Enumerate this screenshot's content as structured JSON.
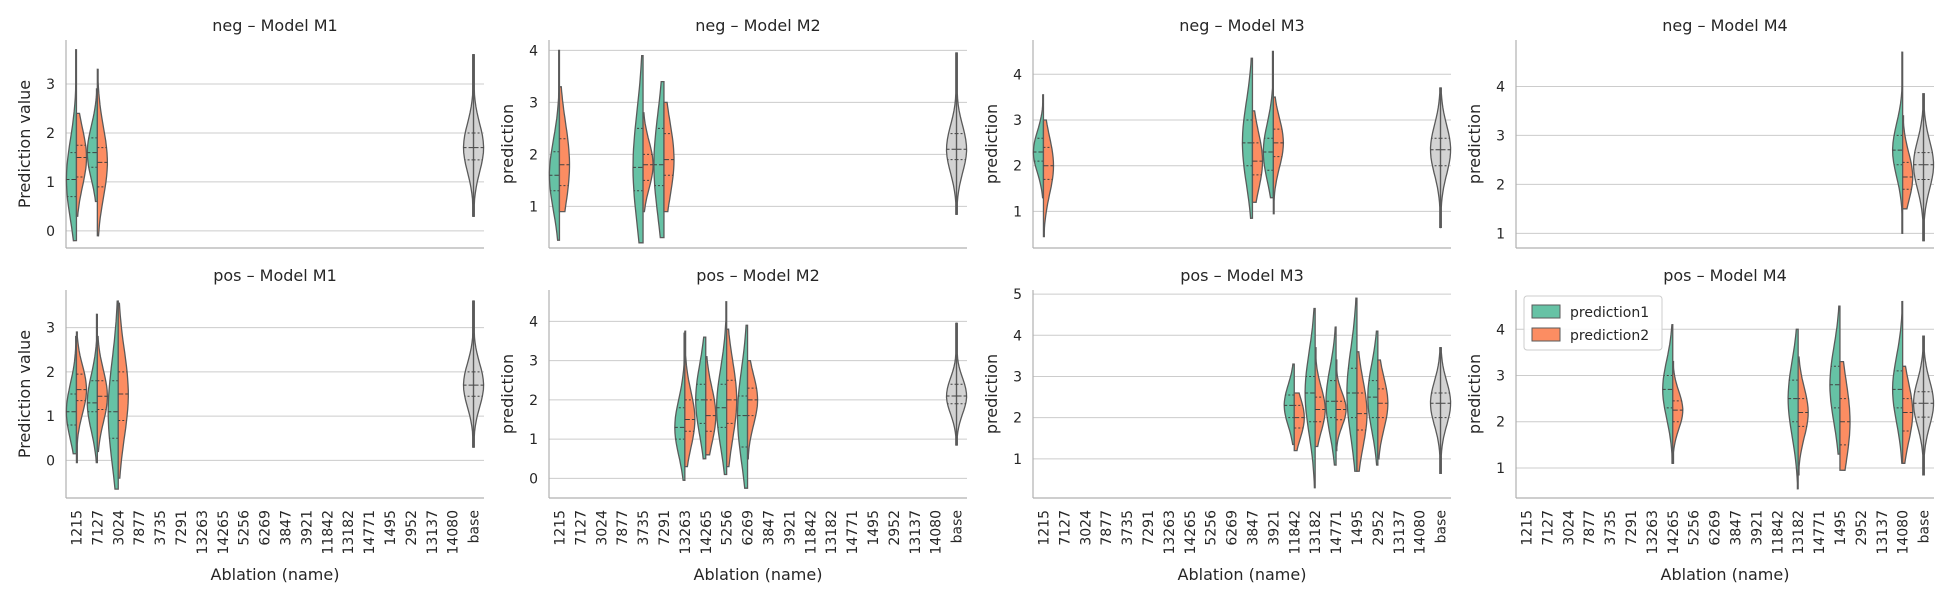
{
  "figure": {
    "x_axis_label": "Ablation (name)",
    "x_tick_labels": [
      "1215",
      "7127",
      "3024",
      "7877",
      "3735",
      "7291",
      "13263",
      "14265",
      "5256",
      "6269",
      "3847",
      "3921",
      "11842",
      "13182",
      "14771",
      "1495",
      "2952",
      "13137",
      "14080",
      "base"
    ],
    "legend": {
      "items": [
        {
          "label": "prediction1"
        },
        {
          "label": "prediction2"
        }
      ]
    }
  },
  "colors": {
    "prediction1": "#66c2a5",
    "prediction2": "#fc8d62",
    "base": "#d3d3d3",
    "outline": "#5a5a5a",
    "grid": "#cccccc",
    "axis": "#b0b0b0"
  },
  "chart_data": [
    {
      "type": "violin",
      "title": "neg – Model M1",
      "ylabel": "Prediction value",
      "ylim": [
        -0.35,
        3.9
      ],
      "yticks": [
        0,
        1,
        2,
        3
      ],
      "violins": [
        {
          "category": "1215",
          "p1": {
            "min": -0.2,
            "max": 3.7,
            "q1": 0.7,
            "median": 1.05,
            "q3": 1.6
          },
          "p2": {
            "min": 0.3,
            "max": 2.4,
            "q1": 1.1,
            "median": 1.5,
            "q3": 1.75
          }
        },
        {
          "category": "7127",
          "p1": {
            "min": 0.6,
            "max": 2.9,
            "q1": 1.3,
            "median": 1.6,
            "q3": 1.9
          },
          "p2": {
            "min": -0.1,
            "max": 3.3,
            "q1": 0.9,
            "median": 1.4,
            "q3": 1.7
          }
        },
        {
          "category": "base",
          "base": {
            "min": 0.3,
            "max": 3.6,
            "q1": 1.45,
            "median": 1.7,
            "q3": 2.0
          }
        }
      ]
    },
    {
      "type": "violin",
      "title": "neg – Model M2",
      "ylabel": "prediction",
      "ylim": [
        0.2,
        4.2
      ],
      "yticks": [
        1,
        2,
        3,
        4
      ],
      "violins": [
        {
          "category": "1215",
          "p1": {
            "min": 0.35,
            "max": 4.0,
            "q1": 1.3,
            "median": 1.6,
            "q3": 2.05
          },
          "p2": {
            "min": 0.9,
            "max": 3.3,
            "q1": 1.4,
            "median": 1.8,
            "q3": 2.3
          }
        },
        {
          "category": "3735",
          "p1": {
            "min": 0.3,
            "max": 3.9,
            "q1": 1.3,
            "median": 1.75,
            "q3": 2.5
          },
          "p2": {
            "min": 0.9,
            "max": 2.8,
            "q1": 1.5,
            "median": 1.8,
            "q3": 2.0
          }
        },
        {
          "category": "7291",
          "p1": {
            "min": 0.4,
            "max": 3.4,
            "q1": 1.4,
            "median": 1.8,
            "q3": 2.5
          },
          "p2": {
            "min": 0.9,
            "max": 3.0,
            "q1": 1.6,
            "median": 1.9,
            "q3": 2.4
          }
        },
        {
          "category": "base",
          "base": {
            "min": 0.85,
            "max": 3.95,
            "q1": 1.9,
            "median": 2.1,
            "q3": 2.4
          }
        }
      ]
    },
    {
      "type": "violin",
      "title": "neg – Model M3",
      "ylabel": "prediction",
      "ylim": [
        0.2,
        4.75
      ],
      "yticks": [
        1,
        2,
        3,
        4
      ],
      "violins": [
        {
          "category": "1215",
          "p1": {
            "min": 1.3,
            "max": 3.55,
            "q1": 2.1,
            "median": 2.3,
            "q3": 2.6
          },
          "p2": {
            "min": 0.45,
            "max": 3.0,
            "q1": 1.7,
            "median": 2.0,
            "q3": 2.4
          }
        },
        {
          "category": "3847",
          "p1": {
            "min": 0.85,
            "max": 4.35,
            "q1": 2.0,
            "median": 2.5,
            "q3": 3.0
          },
          "p2": {
            "min": 1.2,
            "max": 3.2,
            "q1": 1.8,
            "median": 2.1,
            "q3": 2.5
          }
        },
        {
          "category": "3921",
          "p1": {
            "min": 1.3,
            "max": 4.5,
            "q1": 1.9,
            "median": 2.3,
            "q3": 2.6
          },
          "p2": {
            "min": 0.95,
            "max": 3.5,
            "q1": 2.2,
            "median": 2.5,
            "q3": 2.8
          }
        },
        {
          "category": "base",
          "base": {
            "min": 0.65,
            "max": 3.7,
            "q1": 2.0,
            "median": 2.35,
            "q3": 2.6
          }
        }
      ]
    },
    {
      "type": "violin",
      "title": "neg – Model M4",
      "ylabel": "prediction",
      "ylim": [
        0.7,
        4.95
      ],
      "yticks": [
        1,
        2,
        3,
        4
      ],
      "violins": [
        {
          "category": "14080",
          "p1": {
            "min": 1.0,
            "max": 4.7,
            "q1": 2.4,
            "median": 2.7,
            "q3": 3.0
          },
          "p2": {
            "min": 1.5,
            "max": 3.4,
            "q1": 1.9,
            "median": 2.15,
            "q3": 2.45
          }
        },
        {
          "category": "base",
          "base": {
            "min": 0.85,
            "max": 3.85,
            "q1": 2.1,
            "median": 2.4,
            "q3": 2.65
          }
        }
      ]
    },
    {
      "type": "violin",
      "title": "pos – Model M1",
      "ylabel": "Prediction value",
      "ylim": [
        -0.85,
        3.85
      ],
      "yticks": [
        0,
        1,
        2,
        3
      ],
      "violins": [
        {
          "category": "1215",
          "p1": {
            "min": 0.15,
            "max": 2.8,
            "q1": 0.8,
            "median": 1.1,
            "q3": 1.5
          },
          "p2": {
            "min": -0.05,
            "max": 2.9,
            "q1": 1.35,
            "median": 1.6,
            "q3": 1.95
          }
        },
        {
          "category": "7127",
          "p1": {
            "min": -0.05,
            "max": 3.3,
            "q1": 1.1,
            "median": 1.3,
            "q3": 1.8
          },
          "p2": {
            "min": 0.2,
            "max": 2.8,
            "q1": 1.15,
            "median": 1.45,
            "q3": 1.8
          }
        },
        {
          "category": "3024",
          "p1": {
            "min": -0.65,
            "max": 3.6,
            "q1": 0.5,
            "median": 1.1,
            "q3": 1.8
          },
          "p2": {
            "min": -0.4,
            "max": 3.55,
            "q1": 0.9,
            "median": 1.5,
            "q3": 2.0
          }
        },
        {
          "category": "base",
          "base": {
            "min": 0.3,
            "max": 3.6,
            "q1": 1.45,
            "median": 1.7,
            "q3": 2.0
          }
        }
      ]
    },
    {
      "type": "violin",
      "title": "pos – Model M2",
      "ylabel": "prediction",
      "ylim": [
        -0.5,
        4.8
      ],
      "yticks": [
        0,
        1,
        2,
        3,
        4
      ],
      "violins": [
        {
          "category": "13263",
          "p1": {
            "min": -0.05,
            "max": 3.7,
            "q1": 1.0,
            "median": 1.3,
            "q3": 1.8
          },
          "p2": {
            "min": 0.3,
            "max": 3.75,
            "q1": 1.2,
            "median": 1.5,
            "q3": 2.0
          }
        },
        {
          "category": "14265",
          "p1": {
            "min": 0.5,
            "max": 3.6,
            "q1": 1.4,
            "median": 2.0,
            "q3": 2.4
          },
          "p2": {
            "min": 0.6,
            "max": 3.1,
            "q1": 1.2,
            "median": 1.6,
            "q3": 2.0
          }
        },
        {
          "category": "5256",
          "p1": {
            "min": 0.1,
            "max": 4.5,
            "q1": 1.3,
            "median": 1.8,
            "q3": 2.4
          },
          "p2": {
            "min": 0.3,
            "max": 3.8,
            "q1": 1.4,
            "median": 2.0,
            "q3": 2.5
          }
        },
        {
          "category": "6269",
          "p1": {
            "min": -0.25,
            "max": 3.9,
            "q1": 0.8,
            "median": 1.6,
            "q3": 2.1
          },
          "p2": {
            "min": 0.5,
            "max": 3.0,
            "q1": 1.6,
            "median": 2.0,
            "q3": 2.3
          }
        },
        {
          "category": "base",
          "base": {
            "min": 0.85,
            "max": 3.95,
            "q1": 1.9,
            "median": 2.1,
            "q3": 2.4
          }
        }
      ]
    },
    {
      "type": "violin",
      "title": "pos – Model M3",
      "ylabel": "prediction",
      "ylim": [
        0.05,
        5.1
      ],
      "yticks": [
        1,
        2,
        3,
        4,
        5
      ],
      "violins": [
        {
          "category": "11842",
          "p1": {
            "min": 1.35,
            "max": 3.3,
            "q1": 2.0,
            "median": 2.3,
            "q3": 2.55
          },
          "p2": {
            "min": 1.2,
            "max": 2.6,
            "q1": 1.75,
            "median": 2.0,
            "q3": 2.3
          }
        },
        {
          "category": "13182",
          "p1": {
            "min": 0.3,
            "max": 4.65,
            "q1": 1.9,
            "median": 2.6,
            "q3": 3.0
          },
          "p2": {
            "min": 1.3,
            "max": 3.7,
            "q1": 1.9,
            "median": 2.2,
            "q3": 2.5
          }
        },
        {
          "category": "14771",
          "p1": {
            "min": 0.85,
            "max": 4.2,
            "q1": 2.0,
            "median": 2.4,
            "q3": 2.9
          },
          "p2": {
            "min": 1.2,
            "max": 3.4,
            "q1": 1.95,
            "median": 2.2,
            "q3": 2.4
          }
        },
        {
          "category": "1495",
          "p1": {
            "min": 0.7,
            "max": 4.9,
            "q1": 2.0,
            "median": 2.6,
            "q3": 3.2
          },
          "p2": {
            "min": 0.7,
            "max": 3.6,
            "q1": 1.7,
            "median": 2.1,
            "q3": 2.6
          }
        },
        {
          "category": "2952",
          "p1": {
            "min": 0.85,
            "max": 4.1,
            "q1": 2.0,
            "median": 2.5,
            "q3": 2.9
          },
          "p2": {
            "min": 1.0,
            "max": 3.4,
            "q1": 2.0,
            "median": 2.35,
            "q3": 2.7
          }
        },
        {
          "category": "base",
          "base": {
            "min": 0.65,
            "max": 3.7,
            "q1": 2.0,
            "median": 2.35,
            "q3": 2.6
          }
        }
      ]
    },
    {
      "type": "violin",
      "title": "pos – Model M4",
      "ylabel": "prediction",
      "ylim": [
        0.35,
        4.85
      ],
      "yticks": [
        1,
        2,
        3,
        4
      ],
      "violins": [
        {
          "category": "14265",
          "p1": {
            "min": 1.1,
            "max": 4.1,
            "q1": 2.3,
            "median": 2.7,
            "q3": 3.0
          },
          "p2": {
            "min": 1.1,
            "max": 3.3,
            "q1": 2.0,
            "median": 2.25,
            "q3": 2.45
          }
        },
        {
          "category": "13182",
          "p1": {
            "min": 0.55,
            "max": 4.0,
            "q1": 2.0,
            "median": 2.5,
            "q3": 2.9
          },
          "p2": {
            "min": 0.85,
            "max": 3.4,
            "q1": 1.9,
            "median": 2.2,
            "q3": 2.5
          }
        },
        {
          "category": "1495",
          "p1": {
            "min": 1.3,
            "max": 4.5,
            "q1": 2.3,
            "median": 2.8,
            "q3": 3.2
          },
          "p2": {
            "min": 0.95,
            "max": 3.3,
            "q1": 1.5,
            "median": 2.0,
            "q3": 2.5
          }
        },
        {
          "category": "14080",
          "p1": {
            "min": 1.1,
            "max": 4.6,
            "q1": 2.3,
            "median": 2.7,
            "q3": 3.1
          },
          "p2": {
            "min": 1.1,
            "max": 3.2,
            "q1": 1.8,
            "median": 2.2,
            "q3": 2.5
          }
        },
        {
          "category": "base",
          "base": {
            "min": 0.85,
            "max": 3.85,
            "q1": 2.1,
            "median": 2.4,
            "q3": 2.65
          }
        }
      ]
    }
  ]
}
